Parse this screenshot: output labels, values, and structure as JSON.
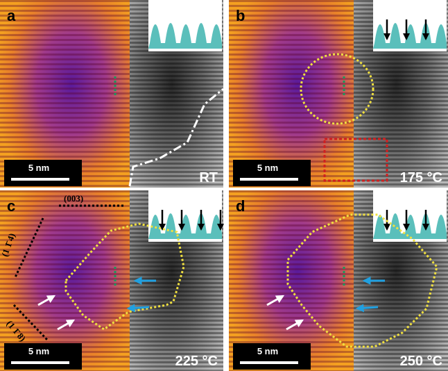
{
  "panels": [
    {
      "label": "a",
      "condition": "RT",
      "scale_bar": "5 nm"
    },
    {
      "label": "b",
      "condition": "175 °C",
      "scale_bar": "5 nm"
    },
    {
      "label": "c",
      "condition": "225 °C",
      "scale_bar": "5 nm",
      "plane_labels": [
        "(003)",
        "(1 1̄ 4)",
        "(1 1̄ 8)"
      ]
    },
    {
      "label": "d",
      "condition": "250 °C",
      "scale_bar": "5 nm"
    }
  ]
}
